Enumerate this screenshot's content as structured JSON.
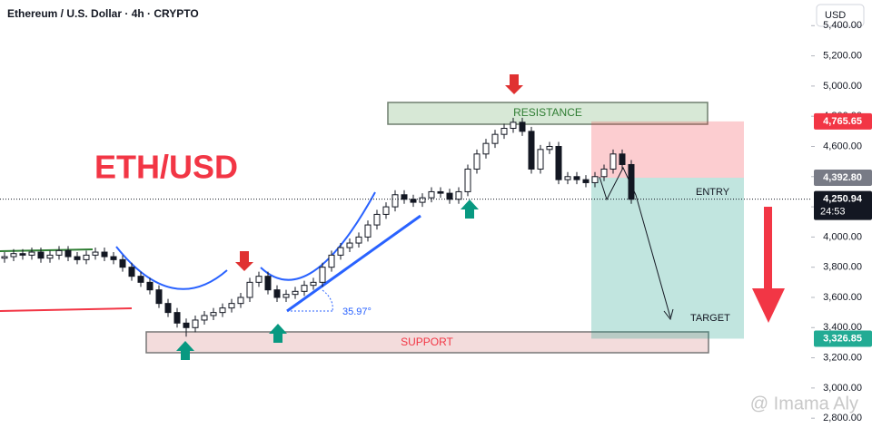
{
  "chart_data": {
    "type": "candlestick",
    "title": "Ethereum / U.S. Dollar · 4h · CRYPTO",
    "currency_button": "USD",
    "headline": "ETH/USD",
    "annotations": {
      "resistance": "RESISTANCE",
      "support": "SUPPORT",
      "entry": "ENTRY",
      "target": "TARGET",
      "angle": "35.97°"
    },
    "watermark": "@ Imama Aly",
    "countdown": "24:53",
    "up_color": "#ffffff",
    "down_color": "#131722",
    "grid": false,
    "ylim": [
      2735,
      5570
    ],
    "yticks": [
      {
        "value": 2800,
        "label": "2,800.00"
      },
      {
        "value": 3000,
        "label": "3,000.00"
      },
      {
        "value": 3200,
        "label": "3,200.00"
      },
      {
        "value": 3400,
        "label": "3,400.00"
      },
      {
        "value": 3600,
        "label": "3,600.00"
      },
      {
        "value": 3800,
        "label": "3,800.00"
      },
      {
        "value": 4000,
        "label": "4,000.00"
      },
      {
        "value": 4200,
        "label": "4,200.00"
      },
      {
        "value": 4400,
        "label": "4,400.00"
      },
      {
        "value": 4600,
        "label": "4,600.00"
      },
      {
        "value": 4800,
        "label": "4,800.00"
      },
      {
        "value": 5000,
        "label": "5,000.00"
      },
      {
        "value": 5200,
        "label": "5,200.00"
      },
      {
        "value": 5400,
        "label": "5,400.00"
      }
    ],
    "price_labels": [
      {
        "value": 4765.65,
        "label": "4,765.65",
        "color": "#f23645"
      },
      {
        "value": 4392.8,
        "label": "4,392.80",
        "color": "#787b86"
      },
      {
        "value": 4250.94,
        "label": "4,250.94",
        "color": "#131722"
      },
      {
        "value": 3326.85,
        "label": "3,326.85",
        "color": "#22ab94"
      }
    ],
    "open": [
      3860,
      3870,
      3890,
      3880,
      3900,
      3860,
      3880,
      3910,
      3870,
      3850,
      3880,
      3900,
      3870,
      3850,
      3800,
      3740,
      3700,
      3650,
      3560,
      3500,
      3430,
      3400,
      3450,
      3480,
      3500,
      3530,
      3560,
      3600,
      3700,
      3740,
      3650,
      3600,
      3620,
      3640,
      3680,
      3700,
      3800,
      3880,
      3930,
      3960,
      4000,
      4080,
      4150,
      4200,
      4280,
      4250,
      4230,
      4260,
      4300,
      4290,
      4250,
      4300,
      4450,
      4550,
      4620,
      4680,
      4720,
      4760,
      4700,
      4450,
      4580,
      4600,
      4380,
      4400,
      4380,
      4360,
      4400,
      4450,
      4550,
      4480
    ],
    "high": [
      3900,
      3920,
      3920,
      3930,
      3930,
      3910,
      3940,
      3940,
      3900,
      3910,
      3930,
      3930,
      3900,
      3880,
      3830,
      3770,
      3730,
      3680,
      3590,
      3530,
      3460,
      3480,
      3510,
      3530,
      3560,
      3590,
      3630,
      3730,
      3770,
      3770,
      3680,
      3650,
      3670,
      3710,
      3730,
      3830,
      3910,
      3960,
      3990,
      4030,
      4110,
      4180,
      4230,
      4310,
      4310,
      4280,
      4290,
      4330,
      4330,
      4320,
      4330,
      4480,
      4580,
      4650,
      4710,
      4750,
      4790,
      4790,
      4730,
      4610,
      4630,
      4630,
      4430,
      4430,
      4410,
      4430,
      4480,
      4580,
      4580,
      4510
    ],
    "low": [
      3830,
      3840,
      3850,
      3850,
      3830,
      3830,
      3850,
      3840,
      3820,
      3820,
      3850,
      3840,
      3820,
      3770,
      3710,
      3670,
      3620,
      3530,
      3470,
      3400,
      3340,
      3370,
      3420,
      3450,
      3470,
      3500,
      3530,
      3570,
      3670,
      3620,
      3570,
      3570,
      3590,
      3610,
      3650,
      3670,
      3770,
      3850,
      3900,
      3930,
      3970,
      4050,
      4120,
      4170,
      4220,
      4200,
      4200,
      4230,
      4260,
      4220,
      4220,
      4270,
      4420,
      4520,
      4590,
      4650,
      4690,
      4670,
      4420,
      4420,
      4550,
      4350,
      4350,
      4350,
      4330,
      4330,
      4370,
      4420,
      4450,
      4220
    ],
    "close": [
      3870,
      3890,
      3880,
      3900,
      3860,
      3880,
      3910,
      3870,
      3850,
      3880,
      3900,
      3870,
      3850,
      3800,
      3740,
      3700,
      3650,
      3560,
      3500,
      3430,
      3400,
      3450,
      3480,
      3500,
      3530,
      3560,
      3600,
      3700,
      3740,
      3650,
      3600,
      3620,
      3640,
      3680,
      3700,
      3800,
      3880,
      3930,
      3960,
      4000,
      4080,
      4150,
      4200,
      4280,
      4250,
      4230,
      4260,
      4300,
      4290,
      4250,
      4300,
      4450,
      4550,
      4620,
      4680,
      4720,
      4760,
      4700,
      4450,
      4580,
      4600,
      4380,
      4400,
      4380,
      4360,
      4400,
      4450,
      4550,
      4480,
      4250
    ]
  }
}
